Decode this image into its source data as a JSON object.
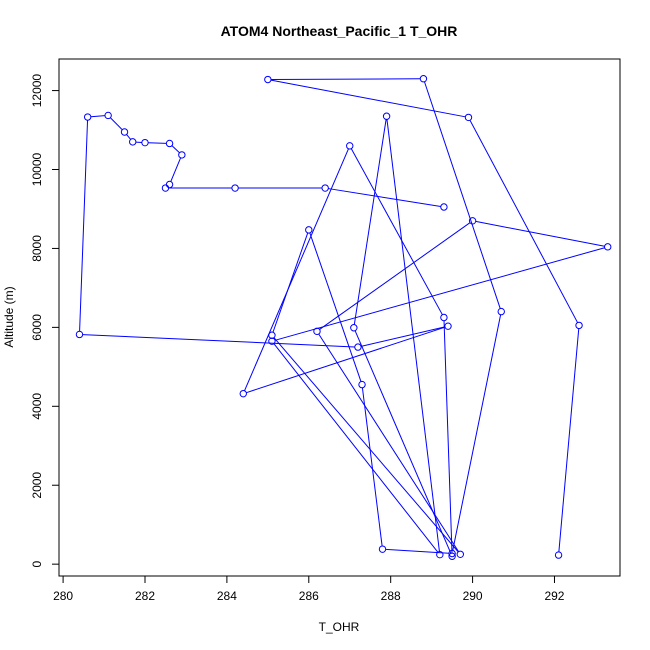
{
  "chart_data": {
    "type": "line",
    "title": "ATOM4 Northeast_Pacific_1 T_OHR",
    "xlabel": "T_OHR",
    "ylabel": "Altitude (m)",
    "xlim": [
      279.9,
      293.6
    ],
    "ylim": [
      -300,
      12800
    ],
    "xticks": [
      280,
      282,
      284,
      286,
      288,
      290,
      292
    ],
    "yticks": [
      0,
      2000,
      4000,
      6000,
      8000,
      10000,
      12000
    ],
    "line_color": "#0000ff",
    "marker": "open-circle",
    "series": [
      {
        "x": [
          292.1,
          292.6,
          289.9,
          285.0,
          288.8,
          290.7,
          289.5,
          287.8,
          287.3,
          286.0,
          285.1,
          289.7,
          286.2,
          290.0,
          293.3,
          285.1,
          289.2,
          287.9,
          287.1,
          289.5,
          289.3,
          287.0,
          284.4,
          289.4,
          287.2,
          280.4,
          280.6,
          281.1,
          281.5,
          281.7,
          282.0,
          282.6,
          282.9,
          282.6,
          282.5,
          284.2,
          286.4,
          289.3
        ],
        "y": [
          230,
          6050,
          11320,
          12280,
          12300,
          6400,
          270,
          380,
          4550,
          8470,
          5800,
          250,
          5900,
          8700,
          8040,
          5650,
          240,
          11350,
          5990,
          200,
          6250,
          10600,
          4320,
          6030,
          5500,
          5820,
          11330,
          11370,
          10950,
          10700,
          10680,
          10660,
          10370,
          9620,
          9530,
          9530,
          9530,
          9050
        ]
      }
    ]
  }
}
